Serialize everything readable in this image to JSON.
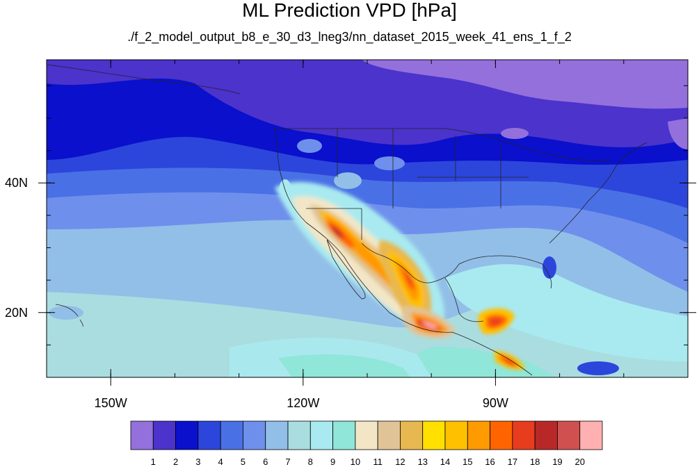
{
  "title": "ML Prediction VPD [hPa]",
  "subtitle": "./f_2_model_output_b8_e_30_d3_lneg3/nn_dataset_2015_week_41_ens_1_f_2",
  "map": {
    "projection": "lat-lon",
    "lon_range": [
      -160,
      -60
    ],
    "lat_range": [
      10,
      59
    ],
    "x_ticks": [
      {
        "lon": -150,
        "label": "150W"
      },
      {
        "lon": -120,
        "label": "120W"
      },
      {
        "lon": -90,
        "label": "90W"
      }
    ],
    "y_ticks": [
      {
        "lat": 40,
        "label": "40N"
      },
      {
        "lat": 20,
        "label": "20N"
      }
    ]
  },
  "colorbar": {
    "levels": [
      "1",
      "2",
      "3",
      "4",
      "5",
      "6",
      "7",
      "8",
      "9",
      "10",
      "11",
      "12",
      "13",
      "14",
      "15",
      "16",
      "17",
      "18",
      "19",
      "20"
    ],
    "colors": [
      "#9370DB",
      "#4B33CC",
      "#0A10CC",
      "#2C46DC",
      "#4A70E6",
      "#6E90EC",
      "#92BFE8",
      "#AADDE0",
      "#A8EAF0",
      "#90E6D8",
      "#F2E6C6",
      "#E0C498",
      "#E8B850",
      "#FFE000",
      "#FFC000",
      "#FF9A00",
      "#FF6400",
      "#E83C1E",
      "#B82828",
      "#D05050",
      "#FFB0B0"
    ]
  }
}
